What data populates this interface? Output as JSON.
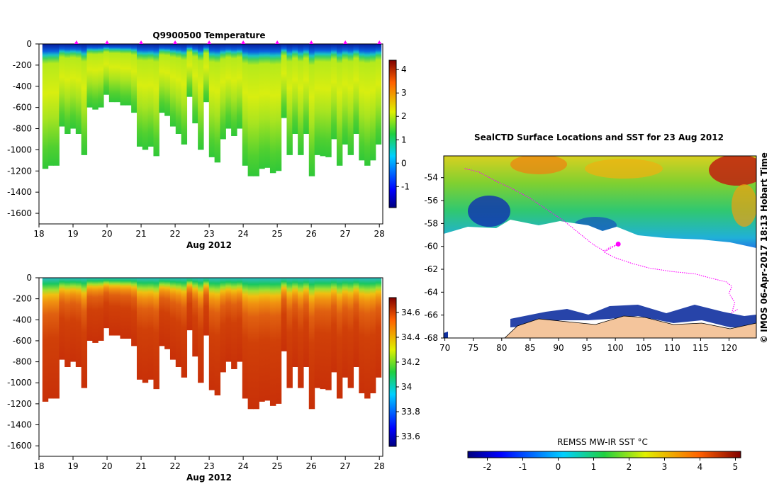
{
  "chart_data": [
    {
      "type": "heatmap",
      "name": "temperature-section",
      "title": "Q9900500  Temperature",
      "xlabel": "Aug 2012",
      "x_ticks": [
        "18",
        "19",
        "20",
        "21",
        "22",
        "23",
        "24",
        "25",
        "26",
        "27",
        "28"
      ],
      "y_ticks": [
        "0",
        "-200",
        "-400",
        "-600",
        "-800",
        "-1000",
        "-1200",
        "-1400",
        "-1600"
      ],
      "xlim": [
        18,
        28.1
      ],
      "ylim": [
        -1700,
        0
      ],
      "colorbar_ticks": [
        "-1",
        "0",
        "1",
        "2",
        "3",
        "4"
      ],
      "colorbar_range": [
        -1.9,
        4.4
      ],
      "profile_markers_day": [
        19.1,
        20.0,
        21.0,
        22.0,
        23.0,
        24.0,
        25.0,
        26.0,
        27.0,
        28.0
      ],
      "profile_max_depths": [
        -1180,
        -1150,
        -1150,
        -780,
        -850,
        -800,
        -850,
        -1050,
        -600,
        -620,
        -600,
        -480,
        -550,
        -550,
        -580,
        -580,
        -650,
        -970,
        -1000,
        -970,
        -1060,
        -650,
        -680,
        -780,
        -850,
        -950,
        -500,
        -750,
        -1000,
        -550,
        -1070,
        -1120,
        -900,
        -800,
        -870,
        -800,
        -1150,
        -1250,
        -1250,
        -1180,
        -1170,
        -1220,
        -1200,
        -700,
        -1050,
        -850,
        -1050,
        -850,
        -1250,
        -1050,
        -1060,
        -1070,
        -900,
        -1150,
        -950,
        -1050,
        -850,
        -1100,
        -1150,
        -1100,
        -950
      ]
    },
    {
      "type": "heatmap",
      "name": "salinity-section",
      "title": "",
      "xlabel": "Aug 2012",
      "x_ticks": [
        "18",
        "19",
        "20",
        "21",
        "22",
        "23",
        "24",
        "25",
        "26",
        "27",
        "28"
      ],
      "y_ticks": [
        "0",
        "-200",
        "-400",
        "-600",
        "-800",
        "-1000",
        "-1200",
        "-1400",
        "-1600"
      ],
      "xlim": [
        18,
        28.1
      ],
      "ylim": [
        -1700,
        0
      ],
      "colorbar_ticks": [
        "33.6",
        "33.8",
        "34",
        "34.2",
        "34.4",
        "34.6"
      ],
      "colorbar_range": [
        33.52,
        34.72
      ]
    },
    {
      "type": "heatmap",
      "name": "sst-map",
      "title": "SealCTD Surface Locations and SST for 23 Aug 2012",
      "x_ticks": [
        "70",
        "75",
        "80",
        "85",
        "90",
        "95",
        "100",
        "105",
        "110",
        "115",
        "120"
      ],
      "y_ticks": [
        "-54",
        "-56",
        "-58",
        "-60",
        "-62",
        "-64",
        "-66",
        "-68"
      ],
      "xlim": [
        69.8,
        124.8
      ],
      "ylim": [
        -68,
        -52.1
      ],
      "colorbar_label": "REMSS MW-IR SST °C",
      "colorbar_ticks": [
        "-2",
        "-1",
        "0",
        "1",
        "2",
        "3",
        "4",
        "5"
      ],
      "colorbar_range": [
        -2.55,
        5.15
      ],
      "credit": "© IMOS 06-Apr-2017 18:13 Hobart Time",
      "seal_track_lon": [
        73.5,
        76,
        79,
        82,
        85,
        88,
        91,
        94,
        96,
        98,
        99,
        100.5,
        98,
        100,
        103,
        106,
        110,
        114,
        117,
        119.5,
        120.5,
        120,
        121,
        120.5,
        121.5
      ],
      "seal_track_lat": [
        -53.2,
        -53.5,
        -54.3,
        -55,
        -55.8,
        -56.8,
        -57.8,
        -59,
        -59.8,
        -60.4,
        -60.1,
        -59.8,
        -60.5,
        -61,
        -61.5,
        -61.9,
        -62.2,
        -62.4,
        -62.8,
        -63.1,
        -63.5,
        -64.1,
        -64.9,
        -65.8,
        -65.5
      ]
    }
  ]
}
